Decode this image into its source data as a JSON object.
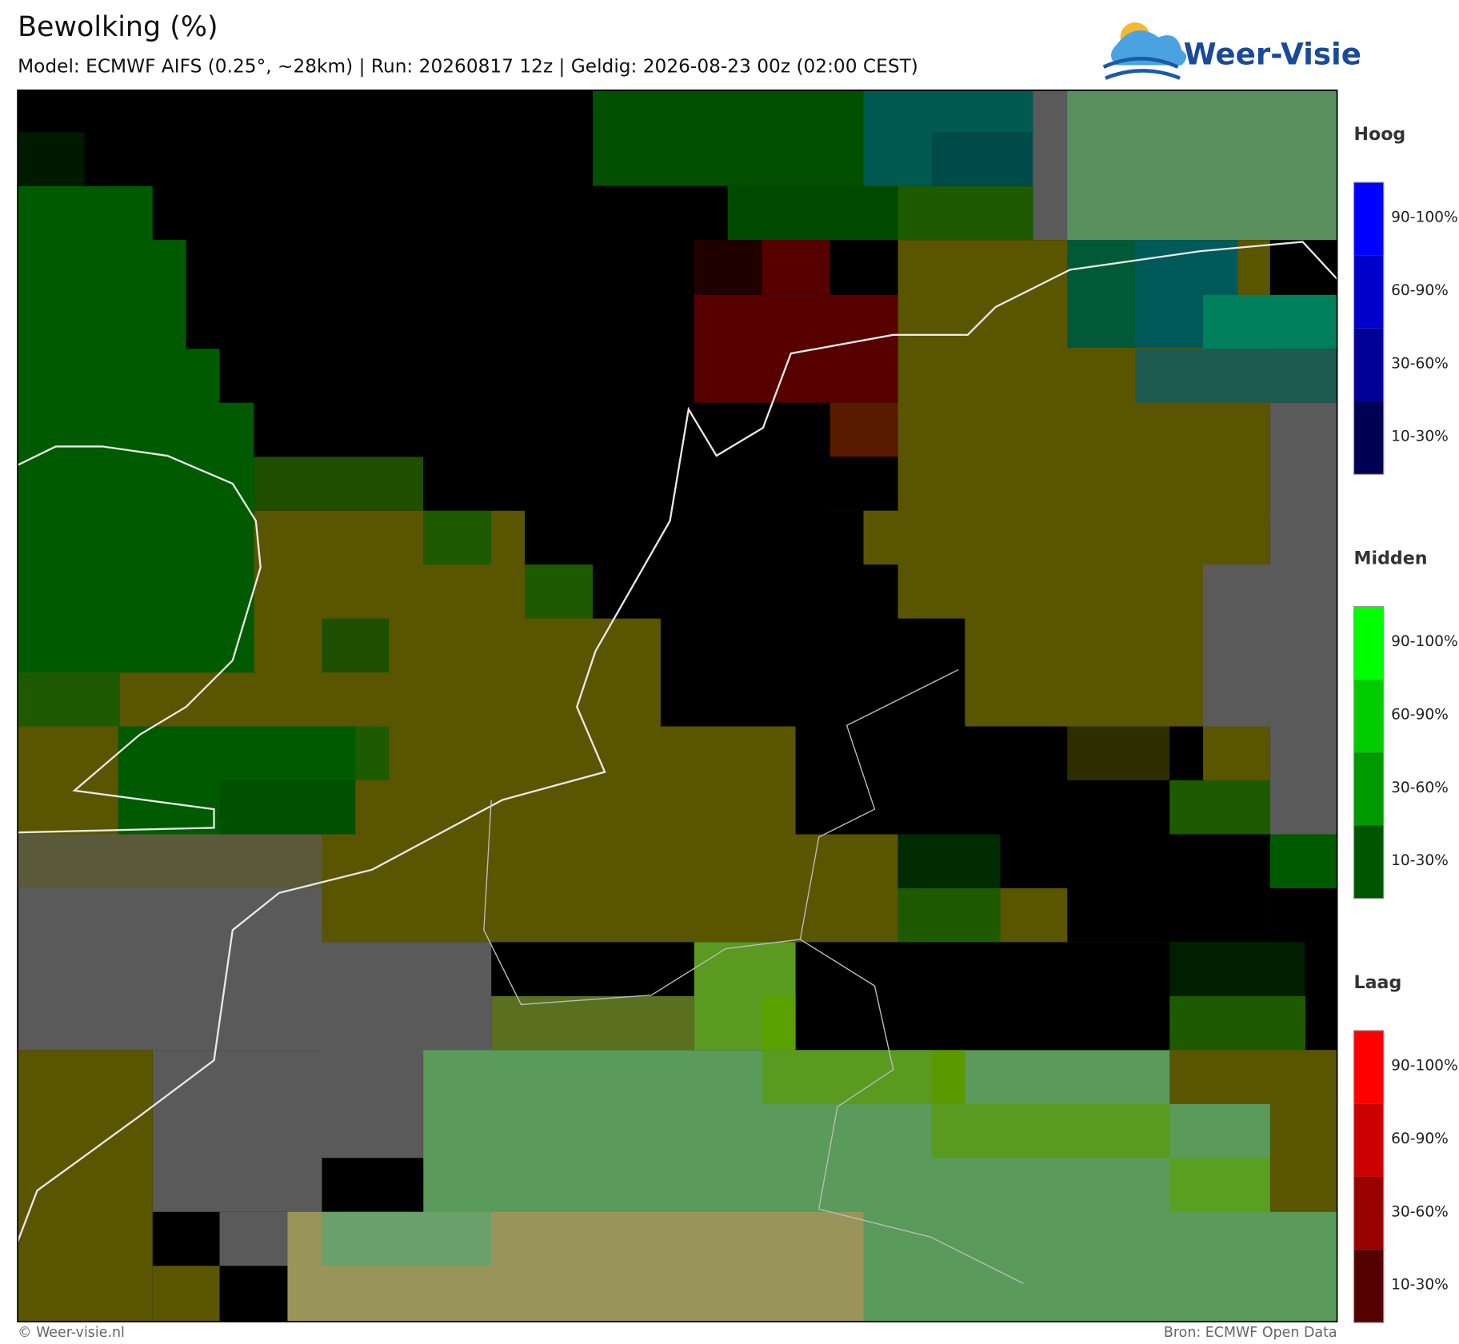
{
  "header": {
    "title": "Bewolking (%)",
    "subtitle": "Model: ECMWF AIFS (0.25°, ~28km)  |  Run: 20260817 12z  |  Geldig: 2026-08-23 00z (02:00 CEST)"
  },
  "logo": {
    "text": "Weer-Visie"
  },
  "legend": {
    "groups": [
      {
        "title": "Hoog",
        "labels": [
          "90-100%",
          "60-90%",
          "30-60%",
          "10-30%"
        ]
      },
      {
        "title": "Midden",
        "labels": [
          "90-100%",
          "60-90%",
          "30-60%",
          "10-30%"
        ]
      },
      {
        "title": "Laag",
        "labels": [
          "90-100%",
          "60-90%",
          "30-60%",
          "10-30%"
        ]
      }
    ]
  },
  "footer": {
    "left": "© Weer-visie.nl",
    "right": "Bron: ECMWF Open Data"
  }
}
